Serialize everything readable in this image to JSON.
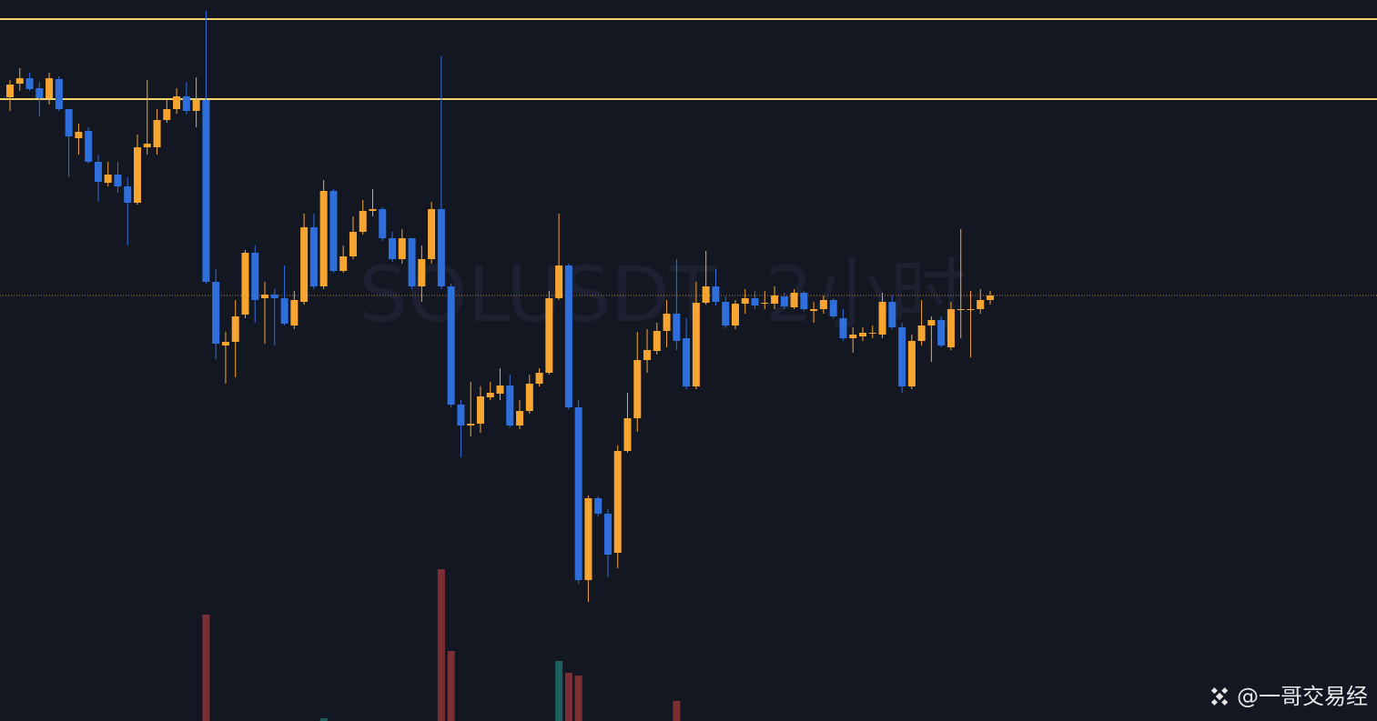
{
  "chart_data": {
    "type": "candlestick",
    "watermark": "SOLUSDT, 2小时",
    "credit": "@一哥交易经",
    "background": "#131722",
    "up_color": "#f7a531",
    "down_color": "#2f6fdc",
    "volume_up_color": "#1e5e5c",
    "volume_down_color": "#7b2f35",
    "ylim": [
      0,
      793
    ],
    "hlines": [
      {
        "value": 772,
        "color": "#f3d46b"
      },
      {
        "value": 684,
        "color": "#f3d46b"
      }
    ],
    "price_line": {
      "value": 468,
      "color": "#c8863a"
    },
    "open": [
      686,
      701,
      707,
      696,
      685,
      706,
      673,
      641,
      649,
      615,
      592,
      601,
      588,
      570,
      631,
      631,
      661,
      673,
      687,
      671,
      683,
      483,
      413,
      417,
      447,
      515,
      465,
      469,
      465,
      435,
      461,
      543,
      478,
      583,
      495,
      511,
      538,
      561,
      563,
      531,
      508,
      531,
      478,
      508,
      563,
      478,
      348,
      325,
      327,
      356,
      360,
      369,
      325,
      341,
      371,
      383,
      465,
      501,
      345,
      155,
      245,
      228,
      185,
      297,
      333,
      397,
      407,
      429,
      448,
      421,
      368,
      460,
      478,
      461,
      435,
      459,
      465,
      459,
      459,
      467,
      455,
      471,
      451,
      453,
      463,
      443,
      421,
      423,
      426,
      425,
      461,
      433,
      368,
      418,
      435,
      441,
      411,
      452,
      452,
      453,
      463
    ],
    "high": [
      705,
      718,
      713,
      703,
      713,
      709,
      673,
      657,
      653,
      623,
      615,
      615,
      598,
      645,
      705,
      673,
      683,
      696,
      703,
      708,
      781,
      497,
      428,
      463,
      518,
      523,
      483,
      475,
      501,
      473,
      558,
      558,
      595,
      585,
      523,
      555,
      573,
      585,
      565,
      538,
      541,
      531,
      523,
      571,
      731,
      481,
      353,
      373,
      368,
      373,
      388,
      381,
      353,
      381,
      388,
      473,
      558,
      503,
      353,
      248,
      247,
      233,
      303,
      361,
      428,
      431,
      438,
      463,
      508,
      443,
      483,
      517,
      497,
      467,
      463,
      475,
      473,
      473,
      478,
      471,
      475,
      473,
      461,
      468,
      465,
      453,
      433,
      433,
      435,
      471,
      468,
      438,
      425,
      463,
      445,
      445,
      461,
      541,
      473,
      475,
      473
    ],
    "low": [
      671,
      693,
      693,
      665,
      678,
      671,
      598,
      623,
      613,
      571,
      588,
      581,
      523,
      568,
      623,
      623,
      658,
      668,
      667,
      653,
      481,
      398,
      371,
      378,
      443,
      438,
      415,
      413,
      435,
      431,
      458,
      475,
      475,
      493,
      493,
      508,
      535,
      555,
      528,
      505,
      503,
      475,
      461,
      503,
      475,
      345,
      290,
      313,
      317,
      353,
      353,
      323,
      321,
      338,
      368,
      381,
      463,
      343,
      151,
      131,
      225,
      158,
      168,
      295,
      318,
      383,
      403,
      411,
      408,
      365,
      365,
      458,
      457,
      433,
      431,
      448,
      453,
      453,
      453,
      453,
      453,
      451,
      438,
      448,
      443,
      418,
      405,
      418,
      421,
      421,
      431,
      361,
      365,
      413,
      395,
      411,
      408,
      421,
      400,
      448,
      458
    ],
    "close": [
      700,
      707,
      695,
      685,
      707,
      673,
      643,
      648,
      615,
      593,
      601,
      588,
      570,
      631,
      635,
      661,
      673,
      687,
      671,
      683,
      483,
      415,
      417,
      445,
      515,
      463,
      469,
      465,
      437,
      463,
      543,
      478,
      583,
      495,
      511,
      538,
      561,
      563,
      531,
      508,
      531,
      478,
      508,
      563,
      478,
      348,
      325,
      327,
      357,
      361,
      369,
      325,
      341,
      371,
      383,
      465,
      501,
      345,
      155,
      245,
      228,
      183,
      297,
      333,
      397,
      408,
      429,
      448,
      418,
      368,
      460,
      478,
      461,
      435,
      459,
      465,
      457,
      460,
      468,
      456,
      471,
      453,
      453,
      463,
      445,
      421,
      425,
      427,
      427,
      461,
      433,
      368,
      418,
      435,
      441,
      413,
      453,
      453,
      453,
      463,
      468
    ],
    "volume": [
      null,
      null,
      null,
      null,
      null,
      null,
      null,
      null,
      null,
      null,
      null,
      null,
      null,
      null,
      null,
      null,
      null,
      null,
      null,
      null,
      117,
      null,
      null,
      null,
      null,
      null,
      null,
      null,
      null,
      null,
      null,
      null,
      3,
      null,
      null,
      null,
      null,
      null,
      null,
      null,
      null,
      null,
      null,
      null,
      167,
      77,
      null,
      null,
      null,
      null,
      null,
      null,
      null,
      null,
      null,
      null,
      66,
      53,
      50,
      null,
      null,
      null,
      null,
      null,
      null,
      null,
      null,
      null,
      22,
      null,
      null,
      null,
      null,
      null,
      null,
      null,
      null,
      null,
      null,
      null,
      null,
      null,
      null,
      null,
      null,
      null,
      null,
      null,
      null,
      null,
      null,
      null,
      null,
      null,
      null,
      null,
      null,
      null,
      null,
      null,
      null
    ]
  }
}
